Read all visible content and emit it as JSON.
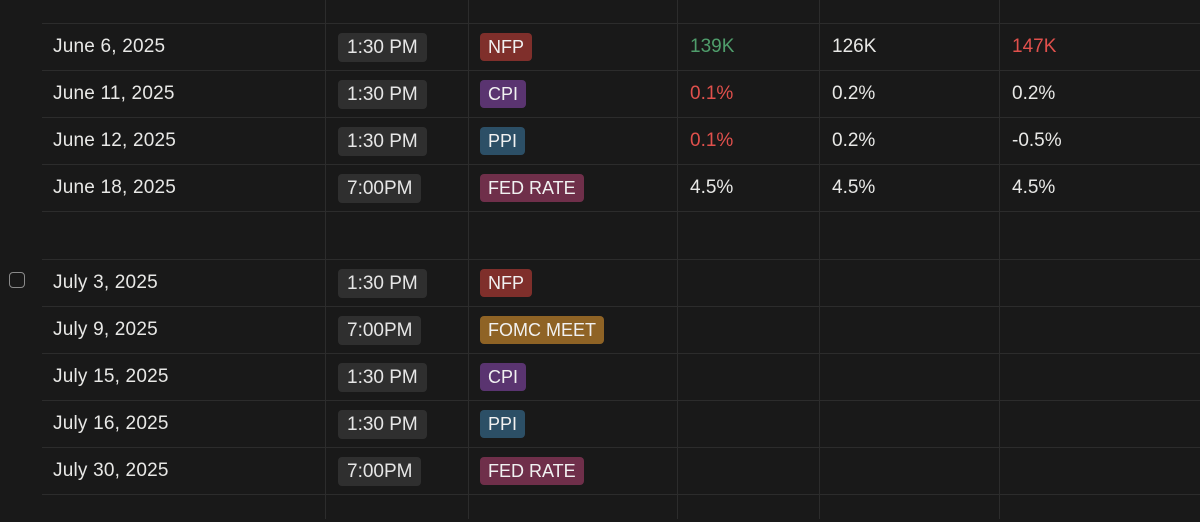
{
  "colors": {
    "nfp": "#7f2f2b",
    "cpi": "#5a3470",
    "ppi": "#2c4f66",
    "fed_rate": "#6f2f4a",
    "fomc_meet": "#8f6325",
    "positive": "#4f9d6b",
    "negative": "#e0504c"
  },
  "rows": [
    {
      "date": "June 6, 2025",
      "time": "1:30 PM",
      "event": "NFP",
      "actual": "139K",
      "forecast": "126K",
      "previous": "147K"
    },
    {
      "date": "June 11, 2025",
      "time": "1:30 PM",
      "event": "CPI",
      "actual": "0.1%",
      "forecast": "0.2%",
      "previous": "0.2%"
    },
    {
      "date": "June 12, 2025",
      "time": "1:30 PM",
      "event": "PPI",
      "actual": "0.1%",
      "forecast": "0.2%",
      "previous": "-0.5%"
    },
    {
      "date": "June 18, 2025",
      "time": "7:00PM",
      "event": "FED RATE",
      "actual": "4.5%",
      "forecast": "4.5%",
      "previous": "4.5%"
    },
    {
      "date": "July 3, 2025",
      "time": "1:30 PM",
      "event": "NFP"
    },
    {
      "date": "July 9, 2025",
      "time": "7:00PM",
      "event": "FOMC MEET"
    },
    {
      "date": "July 15, 2025",
      "time": "1:30 PM",
      "event": "CPI"
    },
    {
      "date": "July 16, 2025",
      "time": "1:30 PM",
      "event": "PPI"
    },
    {
      "date": "July 30, 2025",
      "time": "7:00PM",
      "event": "FED RATE"
    }
  ]
}
